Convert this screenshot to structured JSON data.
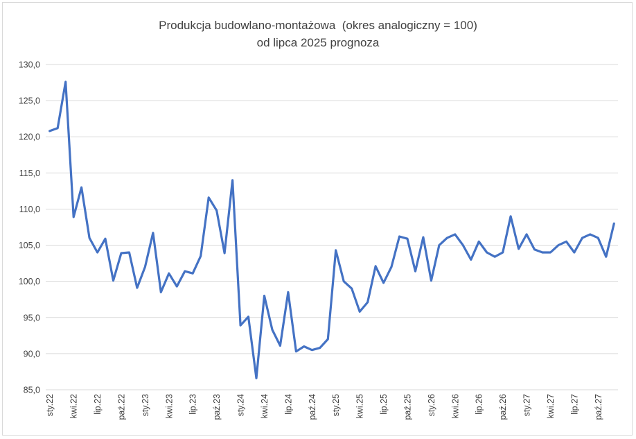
{
  "chart_data": {
    "type": "line",
    "title": "Produkcja budowlano-montażowa  (okres analogiczny = 100)",
    "subtitle": "od lipca 2025 prognoza",
    "xlabel": "",
    "ylabel": "",
    "ylim": [
      85,
      130
    ],
    "yticks": [
      "85,0",
      "90,0",
      "95,0",
      "100,0",
      "105,0",
      "110,0",
      "115,0",
      "120,0",
      "125,0",
      "130,0"
    ],
    "grid": true,
    "legend": "none",
    "color": "#4472c4",
    "x": [
      "sty.22",
      "lut.22",
      "mar.22",
      "kwi.22",
      "maj.22",
      "cze.22",
      "lip.22",
      "sie.22",
      "wrz.22",
      "paź.22",
      "lis.22",
      "gru.22",
      "sty.23",
      "lut.23",
      "mar.23",
      "kwi.23",
      "maj.23",
      "cze.23",
      "lip.23",
      "sie.23",
      "wrz.23",
      "paź.23",
      "lis.23",
      "gru.23",
      "sty.24",
      "lut.24",
      "mar.24",
      "kwi.24",
      "maj.24",
      "cze.24",
      "lip.24",
      "sie.24",
      "wrz.24",
      "paź.24",
      "lis.24",
      "gru.24",
      "sty.25",
      "lut.25",
      "mar.25",
      "kwi.25",
      "maj.25",
      "cze.25",
      "lip.25",
      "sie.25",
      "wrz.25",
      "paź.25",
      "lis.25",
      "gru.25",
      "sty.26",
      "lut.26",
      "mar.26",
      "kwi.26",
      "maj.26",
      "cze.26",
      "lip.26",
      "sie.26",
      "wrz.26",
      "paź.26",
      "lis.26",
      "gru.26",
      "sty.27",
      "lut.27",
      "mar.27",
      "kwi.27",
      "maj.27",
      "cze.27",
      "lip.27",
      "sie.27",
      "wrz.27",
      "paź.27",
      "lis.27",
      "gru.27"
    ],
    "x_tick_labels": [
      "sty.22",
      "kwi.22",
      "lip.22",
      "paź.22",
      "sty.23",
      "kwi.23",
      "lip.23",
      "paź.23",
      "sty.24",
      "kwi.24",
      "lip.24",
      "paź.24",
      "sty.25",
      "kwi.25",
      "lip.25",
      "paź.25",
      "sty.26",
      "kwi.26",
      "lip.26",
      "paź.26",
      "sty.27",
      "kwi.27",
      "lip.27",
      "paź.27"
    ],
    "series": [
      {
        "values": [
          120.8,
          121.2,
          127.6,
          108.9,
          113.0,
          106.0,
          104.0,
          105.9,
          100.1,
          103.9,
          104.0,
          99.1,
          102.0,
          106.7,
          98.5,
          101.1,
          99.3,
          101.4,
          101.1,
          103.5,
          111.6,
          109.8,
          103.9,
          114.0,
          93.9,
          95.1,
          86.6,
          98.0,
          93.3,
          91.1,
          98.5,
          90.3,
          91.0,
          90.5,
          90.8,
          92.0,
          104.3,
          100.0,
          99.0,
          95.8,
          97.1,
          102.1,
          99.8,
          102.0,
          106.2,
          105.9,
          101.4,
          106.1,
          100.1,
          105.0,
          106.0,
          106.5,
          105.0,
          103.0,
          105.5,
          104.0,
          103.4,
          104.0,
          109.0,
          104.5,
          106.5,
          104.4,
          104.0,
          104.0,
          105.0,
          105.5,
          104.0,
          106.0,
          106.5,
          106.0,
          103.4,
          108.0
        ]
      }
    ]
  }
}
